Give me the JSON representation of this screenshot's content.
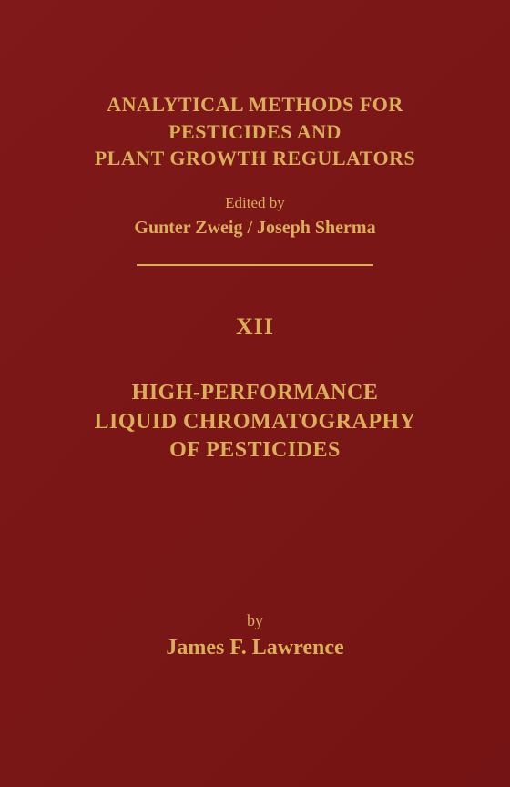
{
  "colors": {
    "background": "#7e1818",
    "text": "#d9af5a",
    "rule": "#d9af5a"
  },
  "typography": {
    "series_title_size": 22,
    "edited_by_size": 17,
    "editors_size": 20,
    "volume_size": 26,
    "main_title_size": 24,
    "by_size": 18,
    "author_size": 24
  },
  "series_title_line1": "ANALYTICAL METHODS FOR",
  "series_title_line2": "PESTICIDES AND",
  "series_title_line3": "PLANT GROWTH REGULATORS",
  "edited_by": "Edited by",
  "editors": "Gunter Zweig / Joseph Sherma",
  "volume": "XII",
  "main_title_line1": "HIGH-PERFORMANCE",
  "main_title_line2": "LIQUID CHROMATOGRAPHY",
  "main_title_line3": "OF PESTICIDES",
  "by": "by",
  "author": "James F. Lawrence"
}
